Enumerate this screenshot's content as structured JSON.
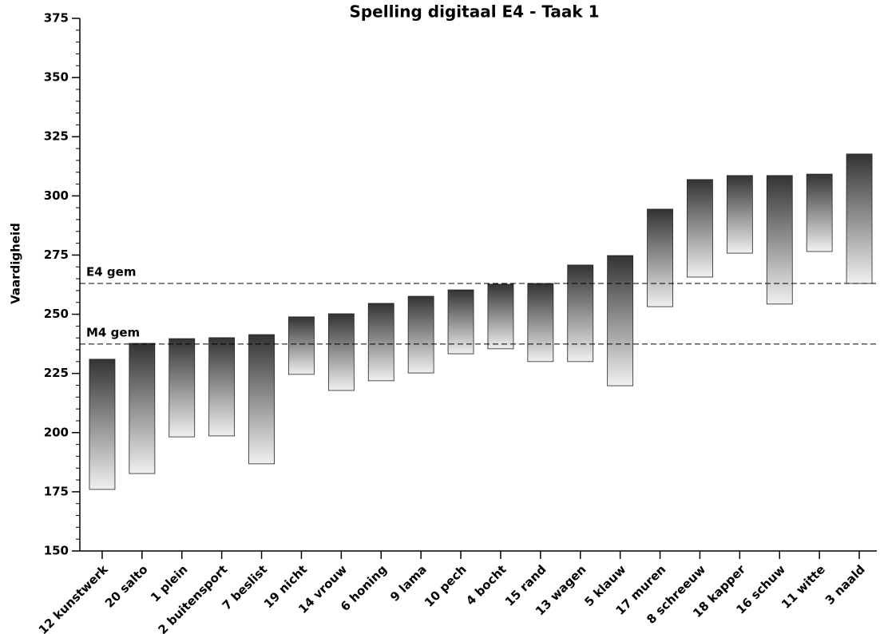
{
  "chart_data": {
    "type": "floating_bar",
    "title": "Spelling digitaal E4 - Taak 1",
    "y_label": "Vaardigheid",
    "categories": [
      "12 kunstwerk",
      "20 salto",
      "1 plein",
      "2 buitensport",
      "7 beslist",
      "19 nicht",
      "14 vrouw",
      "6 honing",
      "9 lama",
      "10 pech",
      "4 bocht",
      "15 rand",
      "13 wagen",
      "5 klauw",
      "17 muren",
      "8 schreeuw",
      "18 kapper",
      "16 schuw",
      "11 witte",
      "3 naald"
    ],
    "low": [
      176.0,
      182.7,
      198.2,
      198.6,
      186.8,
      224.6,
      217.8,
      221.9,
      225.2,
      233.3,
      235.4,
      230.0,
      230.0,
      219.8,
      253.2,
      265.7,
      275.8,
      254.3,
      276.5,
      263.0
    ],
    "high": [
      231.0,
      237.7,
      239.7,
      240.1,
      241.4,
      248.9,
      250.2,
      254.6,
      257.6,
      260.3,
      262.7,
      263.0,
      270.8,
      274.8,
      294.4,
      306.9,
      308.6,
      308.6,
      309.2,
      317.7
    ],
    "reference_lines": [
      {
        "label": "E4 gem",
        "value": 263.0
      },
      {
        "label": "M4 gem",
        "value": 237.4
      }
    ],
    "ylim": [
      150,
      375
    ],
    "yticks": [
      150,
      175,
      200,
      225,
      250,
      275,
      300,
      325,
      350,
      375
    ]
  }
}
